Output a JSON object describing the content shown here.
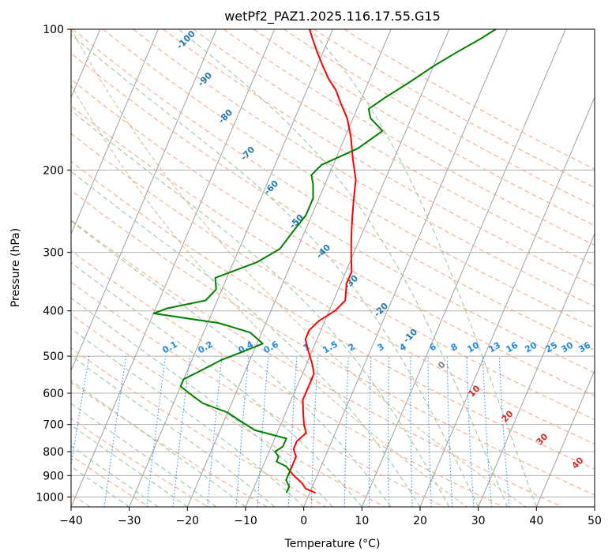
{
  "chart_data": {
    "type": "line",
    "title": "wetPf2_PAZ1.2025.116.17.55.G15",
    "xlabel": "Temperature (°C)",
    "ylabel": "Pressure (hPa)",
    "xlim": [
      -40,
      50
    ],
    "ylim": [
      1050,
      100
    ],
    "y_scale": "log",
    "grid": true,
    "x_ticks": [
      -40,
      -30,
      -20,
      -10,
      0,
      10,
      20,
      30,
      40,
      50
    ],
    "y_ticks": [
      100,
      200,
      300,
      400,
      500,
      600,
      700,
      800,
      900,
      1000
    ],
    "series": [
      {
        "name": "temperature",
        "color": "#ff0000",
        "points": [
          [
            1,
            980
          ],
          [
            -1,
            960
          ],
          [
            -2,
            935
          ],
          [
            -4,
            900
          ],
          [
            -5,
            880
          ],
          [
            -5,
            850
          ],
          [
            -5,
            820
          ],
          [
            -6,
            790
          ],
          [
            -6,
            760
          ],
          [
            -5,
            730
          ],
          [
            -6,
            700
          ],
          [
            -7,
            660
          ],
          [
            -8,
            620
          ],
          [
            -8,
            580
          ],
          [
            -8,
            545
          ],
          [
            -9,
            520
          ],
          [
            -10,
            500
          ],
          [
            -11,
            480
          ],
          [
            -12,
            460
          ],
          [
            -12,
            440
          ],
          [
            -11,
            420
          ],
          [
            -9,
            400
          ],
          [
            -8,
            380
          ],
          [
            -9,
            350
          ],
          [
            -9,
            330
          ],
          [
            -10,
            310
          ],
          [
            -11,
            290
          ],
          [
            -12,
            270
          ],
          [
            -13,
            250
          ],
          [
            -14,
            230
          ],
          [
            -15,
            210
          ],
          [
            -17,
            190
          ],
          [
            -19,
            170
          ],
          [
            -21,
            155
          ],
          [
            -23,
            145
          ],
          [
            -25,
            135
          ],
          [
            -27,
            128
          ],
          [
            -29,
            120
          ],
          [
            -31,
            112
          ],
          [
            -33,
            104
          ],
          [
            -34,
            100
          ]
        ]
      },
      {
        "name": "dewpoint",
        "color": "#008000",
        "points": [
          [
            -4,
            980
          ],
          [
            -4,
            950
          ],
          [
            -5,
            920
          ],
          [
            -5,
            900
          ],
          [
            -5,
            880
          ],
          [
            -6,
            860
          ],
          [
            -8,
            840
          ],
          [
            -8,
            820
          ],
          [
            -9,
            800
          ],
          [
            -8,
            780
          ],
          [
            -8,
            750
          ],
          [
            -14,
            720
          ],
          [
            -17,
            690
          ],
          [
            -20,
            660
          ],
          [
            -25,
            630
          ],
          [
            -28,
            600
          ],
          [
            -30,
            580
          ],
          [
            -30,
            560
          ],
          [
            -28,
            540
          ],
          [
            -27,
            530
          ],
          [
            -25,
            510
          ],
          [
            -22,
            490
          ],
          [
            -19,
            470
          ],
          [
            -22,
            445
          ],
          [
            -28,
            425
          ],
          [
            -40,
            405
          ],
          [
            -38,
            395
          ],
          [
            -32,
            380
          ],
          [
            -31,
            360
          ],
          [
            -32,
            340
          ],
          [
            -26,
            315
          ],
          [
            -23,
            295
          ],
          [
            -22,
            270
          ],
          [
            -21,
            250
          ],
          [
            -21,
            230
          ],
          [
            -22,
            215
          ],
          [
            -23,
            205
          ],
          [
            -22,
            195
          ],
          [
            -17,
            180
          ],
          [
            -14,
            165
          ],
          [
            -17,
            155
          ],
          [
            -18,
            148
          ],
          [
            -16,
            140
          ],
          [
            -13,
            130
          ],
          [
            -10,
            120
          ],
          [
            -7,
            112
          ],
          [
            -4,
            105
          ],
          [
            -2,
            100
          ]
        ]
      }
    ],
    "dry_adiabat_labels": [
      "-100",
      "-90",
      "-80",
      "-70",
      "-60",
      "-50",
      "-40",
      "-30",
      "-20",
      "-10"
    ],
    "moist_adiabat_labels": [
      "0",
      "10",
      "20",
      "30",
      "40"
    ],
    "mixing_ratio_labels": [
      "0.1",
      "0.2",
      "0.4",
      "0.6",
      "1",
      "1.5",
      "2",
      "3",
      "4",
      "6",
      "8",
      "10",
      "13",
      "16",
      "20",
      "25",
      "30",
      "36"
    ],
    "colors": {
      "grid": "#b0b0b0",
      "isotherm": "#a0a0a0",
      "dry_adiabat": "#f4a582",
      "moist_adiabat": "#92c592",
      "mixing_ratio": "#1e88e5",
      "dry_label": "#1f77b4",
      "moist_label": "#d62728",
      "mix_label": "#1e88e5",
      "tan_curve": "#d2b48c"
    }
  }
}
